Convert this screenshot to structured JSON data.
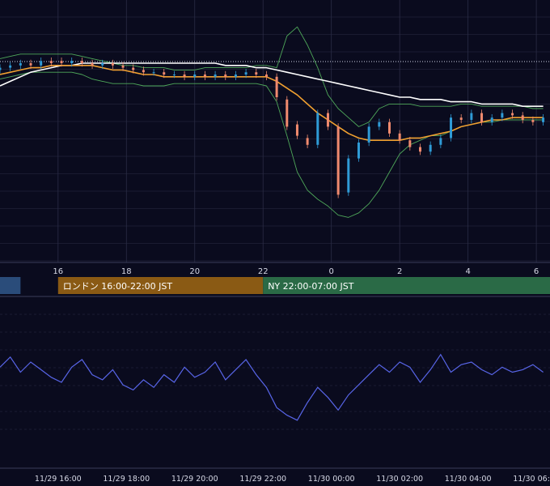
{
  "colors": {
    "background": "#0a0b1e",
    "grid": "#2a2c45",
    "candle_up": "#2f9bd6",
    "candle_down": "#f08a6e",
    "bollinger": "#4fa85a",
    "ma_fast": "#f0a030",
    "ma_slow": "#ffffff",
    "oscillator": "#5865e8",
    "session_tokyo": "#2a4c7a",
    "session_london": "#8a5a14",
    "session_ny": "#2a6a46"
  },
  "chart_data": [
    {
      "type": "candlestick",
      "title": "",
      "x_tick_labels": [
        "16",
        "18",
        "20",
        "22",
        "0",
        "2",
        "4",
        "6"
      ],
      "x_ticks_hours": [
        16,
        18,
        20,
        22,
        24,
        26,
        28,
        30
      ],
      "x_range_hours": [
        14.3,
        30.4
      ],
      "y_range_relative": [
        0,
        100
      ],
      "grid": true,
      "series": [
        {
          "kind": "candles",
          "x_hours": [
            14.3,
            14.6,
            14.9,
            15.2,
            15.5,
            15.8,
            16.1,
            16.4,
            16.7,
            17.0,
            17.3,
            17.6,
            17.9,
            18.2,
            18.5,
            18.8,
            19.1,
            19.4,
            19.7,
            20.0,
            20.3,
            20.6,
            20.9,
            21.2,
            21.5,
            21.8,
            22.1,
            22.4,
            22.7,
            23.0,
            23.3,
            23.6,
            23.9,
            24.2,
            24.5,
            24.8,
            25.1,
            25.4,
            25.7,
            26.0,
            26.3,
            26.6,
            26.9,
            27.2,
            27.5,
            27.8,
            28.1,
            28.4,
            28.7,
            29.0,
            29.3,
            29.6,
            29.9,
            30.2
          ],
          "close": [
            78,
            79,
            80,
            79,
            81,
            80,
            80,
            81,
            80,
            79,
            80,
            79,
            78,
            77,
            76,
            76,
            75,
            75,
            74,
            75,
            74,
            75,
            74,
            75,
            76,
            75,
            74,
            65,
            52,
            48,
            44,
            58,
            52,
            22,
            38,
            45,
            52,
            54,
            49,
            46,
            43,
            41,
            44,
            47,
            56,
            55,
            58,
            54,
            56,
            58,
            57,
            55,
            54,
            56
          ],
          "open": [
            77,
            78,
            79,
            80,
            79,
            81,
            81,
            80,
            81,
            80,
            79,
            80,
            79,
            78,
            77,
            76,
            76,
            75,
            75,
            74,
            75,
            74,
            75,
            74,
            75,
            76,
            75,
            74,
            64,
            53,
            47,
            44,
            58,
            52,
            23,
            38,
            45,
            52,
            54,
            49,
            46,
            43,
            41,
            44,
            47,
            56,
            55,
            58,
            54,
            56,
            58,
            57,
            55,
            54
          ]
        },
        {
          "kind": "bollinger_upper",
          "name": "",
          "values": [
            82,
            83,
            84,
            84,
            84,
            84,
            84,
            84,
            83,
            82,
            81,
            80,
            79,
            79,
            78,
            78,
            78,
            77,
            77,
            77,
            78,
            78,
            78,
            78,
            78,
            79,
            79,
            78,
            92,
            96,
            88,
            78,
            66,
            60,
            56,
            52,
            54,
            60,
            62,
            62,
            62,
            61,
            61,
            61,
            61,
            62,
            62,
            61,
            61,
            61,
            61,
            61,
            60,
            60
          ]
        },
        {
          "kind": "bollinger_lower",
          "name": "",
          "values": [
            73,
            74,
            75,
            76,
            76,
            76,
            76,
            76,
            75,
            73,
            72,
            71,
            71,
            71,
            70,
            70,
            70,
            71,
            71,
            71,
            71,
            71,
            71,
            71,
            71,
            71,
            70,
            63,
            48,
            32,
            24,
            20,
            17,
            13,
            12,
            14,
            18,
            24,
            32,
            40,
            44,
            46,
            48,
            48,
            50,
            52,
            53,
            54,
            54,
            55,
            55,
            55,
            55,
            55
          ]
        },
        {
          "kind": "ma_fast",
          "name": "",
          "values": [
            75,
            76,
            77,
            78,
            78,
            79,
            79,
            79,
            79,
            79,
            78,
            77,
            77,
            76,
            75,
            75,
            74,
            74,
            74,
            74,
            74,
            74,
            74,
            74,
            74,
            74,
            74,
            72,
            69,
            66,
            62,
            58,
            55,
            52,
            49,
            47,
            46,
            46,
            46,
            46,
            47,
            47,
            48,
            49,
            50,
            52,
            53,
            54,
            55,
            55,
            56,
            56,
            56,
            56
          ]
        },
        {
          "kind": "ma_slow",
          "name": "",
          "values": [
            70,
            72,
            74,
            76,
            77,
            78,
            79,
            79,
            80,
            80,
            80,
            80,
            80,
            80,
            80,
            80,
            80,
            80,
            80,
            80,
            80,
            80,
            79,
            79,
            79,
            78,
            78,
            77,
            76,
            75,
            74,
            73,
            72,
            71,
            70,
            69,
            68,
            67,
            66,
            65,
            65,
            64,
            64,
            64,
            63,
            63,
            63,
            62,
            62,
            62,
            62,
            61,
            61,
            61
          ]
        }
      ]
    },
    {
      "type": "line",
      "title": "",
      "x_tick_labels": [
        "11/29 16:00",
        "11/29 18:00",
        "11/29 20:00",
        "11/29 22:00",
        "11/30 00:00",
        "11/30 02:00",
        "11/30 04:00",
        "11/30 06:00"
      ],
      "x_range_hours": [
        14.3,
        30.4
      ],
      "y_range_relative": [
        0,
        100
      ],
      "grid": true,
      "series": [
        {
          "name": "",
          "x_hours": [
            14.3,
            14.6,
            14.9,
            15.2,
            15.5,
            15.8,
            16.1,
            16.4,
            16.7,
            17.0,
            17.3,
            17.6,
            17.9,
            18.2,
            18.5,
            18.8,
            19.1,
            19.4,
            19.7,
            20.0,
            20.3,
            20.6,
            20.9,
            21.2,
            21.5,
            21.8,
            22.1,
            22.4,
            22.7,
            23.0,
            23.3,
            23.6,
            23.9,
            24.2,
            24.5,
            24.8,
            25.1,
            25.4,
            25.7,
            26.0,
            26.3,
            26.6,
            26.9,
            27.2,
            27.5,
            27.8,
            28.1,
            28.4,
            28.7,
            29.0,
            29.3,
            29.6,
            29.9,
            30.2
          ],
          "values": [
            62,
            70,
            58,
            66,
            60,
            54,
            50,
            62,
            68,
            56,
            52,
            60,
            48,
            44,
            52,
            46,
            56,
            50,
            62,
            54,
            58,
            66,
            52,
            60,
            68,
            56,
            46,
            30,
            24,
            20,
            34,
            46,
            38,
            28,
            40,
            48,
            56,
            64,
            58,
            66,
            62,
            50,
            60,
            72,
            58,
            64,
            66,
            60,
            56,
            62,
            58,
            60,
            64,
            58
          ]
        }
      ]
    }
  ],
  "sessions": [
    {
      "label": "",
      "color": "#2a4c7a",
      "start_hours": 14.3,
      "end_hours": 14.9
    },
    {
      "label": "ロンドン 16:00-22:00 JST",
      "color": "#8a5a14",
      "start_hours": 16.0,
      "end_hours": 22.0
    },
    {
      "label": "NY 22:00-07:00 JST",
      "color": "#2a6a46",
      "start_hours": 22.0,
      "end_hours": 30.4
    }
  ]
}
